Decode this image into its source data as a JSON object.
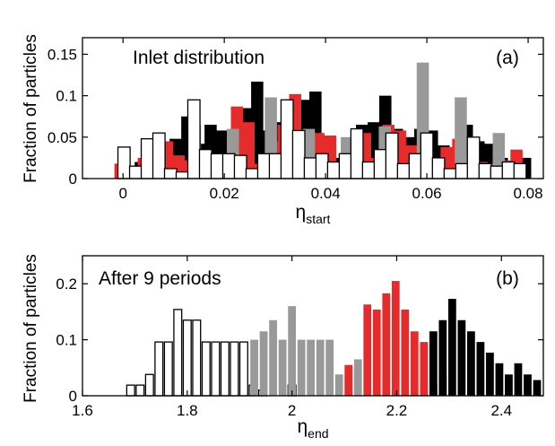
{
  "colors": {
    "black": "#000000",
    "red": "#e52b2b",
    "gray": "#999999",
    "white": "#ffffff",
    "outline": "#000000"
  },
  "chart_data": [
    {
      "panel": "(a)",
      "type": "bar",
      "title": "",
      "annotation": "Inlet distribution",
      "panel_label": "(a)",
      "xlabel": {
        "main": "η",
        "subscript": "start"
      },
      "ylabel": "Fraction of particles",
      "xlim": [
        -0.008,
        0.083
      ],
      "ylim": [
        0,
        0.17
      ],
      "xticks": [
        0,
        0.02,
        0.04,
        0.06,
        0.08
      ],
      "xtick_labels": [
        "0",
        "0.02",
        "0.04",
        "0.06",
        "0.08"
      ],
      "yticks": [
        0,
        0.05,
        0.1,
        0.15
      ],
      "ytick_labels": [
        "0",
        "0.05",
        "0.1",
        "0.15"
      ],
      "bar_width": 0.0024,
      "series": [
        {
          "color": "black",
          "x": [
            0.0012,
            0.0035,
            0.0058,
            0.0081,
            0.0104,
            0.0127,
            0.015,
            0.0173,
            0.0196,
            0.0219,
            0.0242,
            0.0265,
            0.0288,
            0.0311,
            0.0334,
            0.0357,
            0.038,
            0.0403,
            0.0426,
            0.0449,
            0.0472,
            0.0495,
            0.0518,
            0.0541,
            0.0564,
            0.0587,
            0.061,
            0.0633,
            0.0656,
            0.0679,
            0.0702,
            0.0725,
            0.0748,
            0.0771,
            0.0794
          ],
          "values": [
            0.012,
            0.02,
            0.025,
            0.03,
            0.048,
            0.075,
            0.042,
            0.065,
            0.058,
            0.05,
            0.085,
            0.117,
            0.058,
            0.068,
            0.058,
            0.095,
            0.105,
            0.045,
            0.025,
            0.03,
            0.065,
            0.068,
            0.1,
            0.06,
            0.05,
            0.06,
            0.058,
            0.04,
            0.03,
            0.065,
            0.045,
            0.042,
            0.025,
            0.015,
            0.025
          ]
        },
        {
          "color": "red",
          "x": [
            -0.0005,
            0.0018,
            0.0041,
            0.0064,
            0.0087,
            0.011,
            0.0133,
            0.0156,
            0.0179,
            0.0202,
            0.0225,
            0.0248,
            0.0271,
            0.0294,
            0.0317,
            0.034,
            0.0363,
            0.0386,
            0.0409,
            0.0432,
            0.0455,
            0.0478,
            0.0501,
            0.0524,
            0.0547,
            0.057,
            0.0593,
            0.0616,
            0.0639,
            0.0662,
            0.0685,
            0.0708,
            0.0731,
            0.0754,
            0.0777
          ],
          "values": [
            0.018,
            0.012,
            0.025,
            0.018,
            0.045,
            0.028,
            0.022,
            0.028,
            0.03,
            0.025,
            0.087,
            0.068,
            0.018,
            0.045,
            0.065,
            0.102,
            0.04,
            0.055,
            0.052,
            0.02,
            0.04,
            0.055,
            0.025,
            0.065,
            0.058,
            0.04,
            0.048,
            0.025,
            0.038,
            0.048,
            0.025,
            0.02,
            0.018,
            0.022,
            0.035
          ]
        },
        {
          "color": "gray",
          "x": [
            0.0142,
            0.0217,
            0.0292,
            0.0367,
            0.0442,
            0.0517,
            0.0592,
            0.0667,
            0.0742
          ],
          "values": [
            0.065,
            0.06,
            0.098,
            0.06,
            0.05,
            0.063,
            0.14,
            0.098,
            0.055
          ]
        },
        {
          "color": "white",
          "x": [
            0.0002,
            0.0025,
            0.0048,
            0.0071,
            0.0094,
            0.0117,
            0.014,
            0.0163,
            0.0186,
            0.0209,
            0.0232,
            0.0255,
            0.0278,
            0.0301,
            0.0324,
            0.0347,
            0.037,
            0.0393,
            0.0416,
            0.0439,
            0.0462,
            0.0485,
            0.0508,
            0.0531,
            0.0554,
            0.0577,
            0.06,
            0.0623,
            0.0646,
            0.0669,
            0.0692,
            0.0715,
            0.0738,
            0.0761,
            0.0784
          ],
          "values": [
            0.038,
            0.015,
            0.048,
            0.055,
            0.012,
            0.008,
            0.095,
            0.035,
            0.03,
            0.03,
            0.028,
            0.012,
            0.03,
            0.03,
            0.095,
            0.058,
            0.025,
            0.03,
            0.02,
            0.03,
            0.06,
            0.02,
            0.035,
            0.055,
            0.018,
            0.03,
            0.055,
            0.025,
            0.012,
            0.018,
            0.05,
            0.018,
            0.015,
            0.02,
            0.018
          ]
        }
      ]
    },
    {
      "panel": "(b)",
      "type": "bar",
      "title": "",
      "annotation": "After 9 periods",
      "panel_label": "(b)",
      "xlabel": {
        "main": "η",
        "subscript": "end"
      },
      "ylabel": "Fraction of particles",
      "xlim": [
        1.6,
        2.48
      ],
      "ylim": [
        0,
        0.25
      ],
      "xticks": [
        1.6,
        1.8,
        2,
        2.2,
        2.4
      ],
      "xtick_labels": [
        "1.6",
        "1.8",
        "2",
        "2.2",
        "2.4"
      ],
      "yticks": [
        0,
        0.1,
        0.2
      ],
      "ytick_labels": [
        "0",
        "0.1",
        "0.2"
      ],
      "bar_width": 0.015,
      "series": [
        {
          "color": "white",
          "x": [
            1.692,
            1.71,
            1.728,
            1.746,
            1.764,
            1.782,
            1.8,
            1.818,
            1.836,
            1.854,
            1.872,
            1.89,
            1.908,
            1.926,
            1.944,
            2.0
          ],
          "values": [
            0.019,
            0.019,
            0.038,
            0.096,
            0.096,
            0.154,
            0.135,
            0.135,
            0.096,
            0.096,
            0.096,
            0.096,
            0.096,
            0.019,
            0.01,
            0.019
          ]
        },
        {
          "color": "gray",
          "x": [
            1.928,
            1.946,
            1.964,
            1.982,
            2.0,
            2.018,
            2.036,
            2.054,
            2.072,
            2.09,
            2.108,
            2.126
          ],
          "values": [
            0.1,
            0.115,
            0.135,
            0.1,
            0.16,
            0.1,
            0.1,
            0.1,
            0.1,
            0.038,
            0.038,
            0.065
          ]
        },
        {
          "color": "red",
          "x": [
            2.108,
            2.144,
            2.162,
            2.18,
            2.198,
            2.216,
            2.234,
            2.252,
            2.27,
            2.288
          ],
          "values": [
            0.055,
            0.163,
            0.154,
            0.183,
            0.205,
            0.154,
            0.115,
            0.096,
            0.019,
            0.038
          ]
        },
        {
          "color": "black",
          "x": [
            2.27,
            2.288,
            2.306,
            2.324,
            2.342,
            2.36,
            2.378,
            2.396,
            2.414,
            2.432,
            2.45,
            2.468
          ],
          "values": [
            0.115,
            0.135,
            0.173,
            0.135,
            0.115,
            0.096,
            0.077,
            0.058,
            0.038,
            0.058,
            0.038,
            0.028
          ]
        }
      ]
    }
  ]
}
